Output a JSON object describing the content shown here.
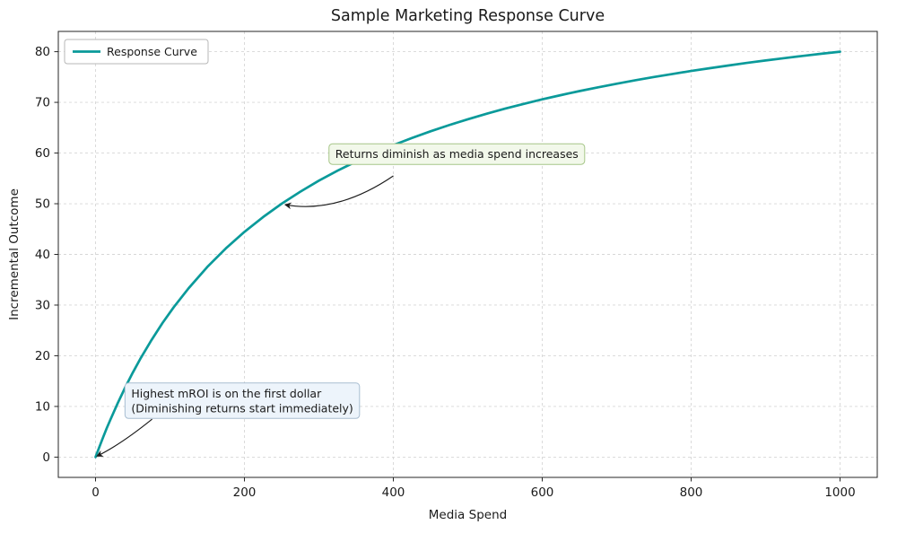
{
  "chart_data": {
    "type": "line",
    "title": "Sample Marketing Response Curve",
    "xlabel": "Media Spend",
    "ylabel": "Incremental Outcome",
    "xlim": [
      -50,
      1050
    ],
    "ylim": [
      -4,
      84
    ],
    "x_ticks": [
      0,
      200,
      400,
      600,
      800,
      1000
    ],
    "y_ticks": [
      0,
      10,
      20,
      30,
      40,
      50,
      60,
      70,
      80
    ],
    "grid": true,
    "grid_color": "#d7d7d7",
    "axis_color": "#262626",
    "background_color": "#ffffff",
    "legend": {
      "position": "upper left",
      "entries": [
        "Response Curve"
      ]
    },
    "series": [
      {
        "name": "Response Curve",
        "color": "#0a9a9a",
        "x": [
          0,
          5,
          10,
          15,
          20,
          30,
          40,
          50,
          60,
          75,
          90,
          105,
          125,
          150,
          175,
          200,
          225,
          250,
          275,
          300,
          325,
          350,
          375,
          400,
          425,
          450,
          475,
          500,
          525,
          550,
          575,
          600,
          625,
          650,
          675,
          700,
          725,
          750,
          775,
          800,
          825,
          850,
          875,
          900,
          925,
          950,
          975,
          1000
        ],
        "y": [
          0,
          1.96,
          3.85,
          5.66,
          7.41,
          10.71,
          13.79,
          16.67,
          19.35,
          23.08,
          26.47,
          29.58,
          33.33,
          37.5,
          41.18,
          44.44,
          47.37,
          50,
          52.38,
          54.55,
          56.52,
          58.33,
          60,
          61.54,
          62.96,
          64.29,
          65.52,
          66.67,
          67.74,
          68.75,
          69.7,
          70.59,
          71.43,
          72.22,
          72.97,
          73.68,
          74.36,
          75,
          75.61,
          76.19,
          76.74,
          77.27,
          77.78,
          78.26,
          78.72,
          79.17,
          79.59,
          80
        ]
      }
    ],
    "annotations": [
      {
        "id": "diminishing-returns",
        "lines": [
          "Returns diminish as media spend increases"
        ],
        "text_xy": [
          322,
          59
        ],
        "box": {
          "bg": "#f2f8ea",
          "border": "#a6c688"
        },
        "arrow": {
          "from": [
            400,
            55.5
          ],
          "ctrl": [
            325,
            48
          ],
          "to": [
            255,
            49.8
          ]
        }
      },
      {
        "id": "highest-mroi",
        "lines": [
          "Highest mROI is on the first dollar",
          "(Diminishing returns start immediately)"
        ],
        "text_xy": [
          48,
          11.8
        ],
        "box": {
          "bg": "#edf4fb",
          "border": "#a8bdd1"
        },
        "arrow": {
          "from": [
            76,
            7.5
          ],
          "ctrl": [
            34,
            2.5
          ],
          "to": [
            2,
            0.2
          ]
        }
      }
    ]
  }
}
